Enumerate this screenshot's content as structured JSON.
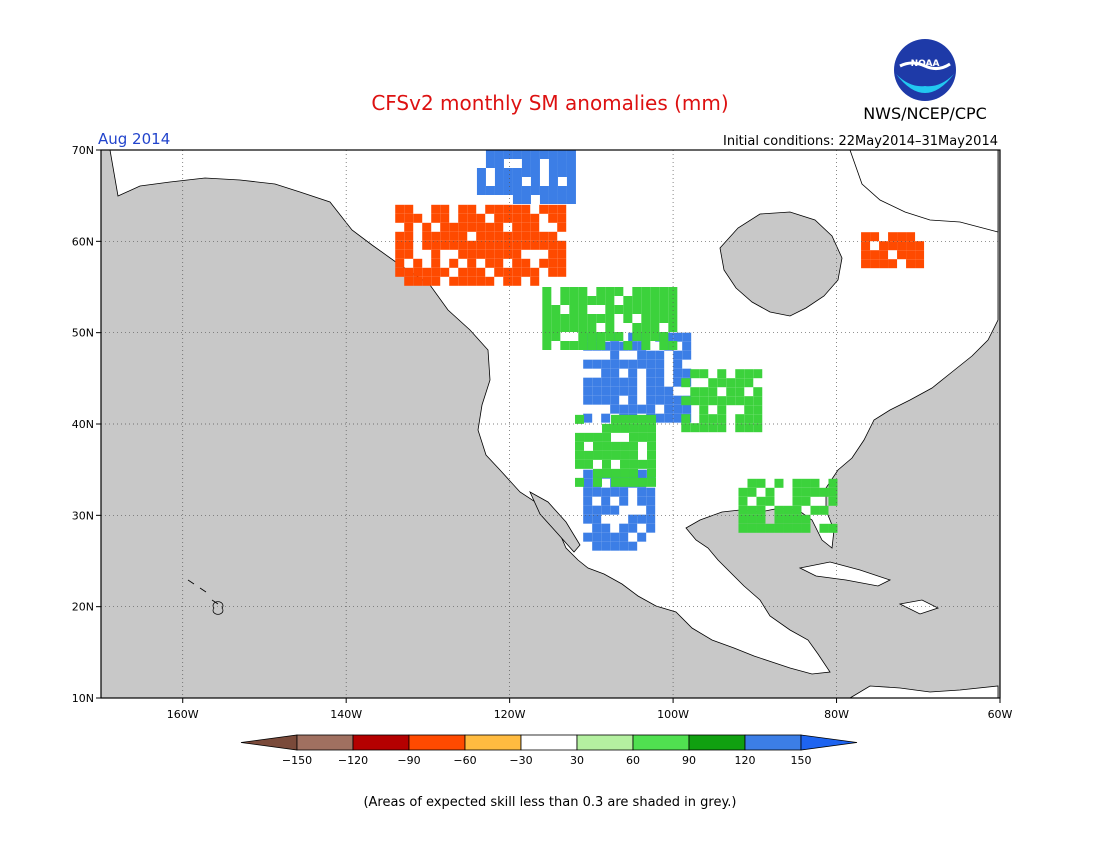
{
  "header": {
    "title": "CFSv2 monthly SM anomalies (mm)",
    "agency": "NWS/NCEP/CPC",
    "logo_text": "NOAA",
    "target_month": "Aug 2014",
    "initial_conditions": "Initial conditions: 22May2014–31May2014"
  },
  "map": {
    "projection": "lat-lon",
    "lon_range": [
      -170,
      -60
    ],
    "lat_range": [
      10,
      70
    ],
    "lat_ticks": [
      {
        "value": 70,
        "label": "70N"
      },
      {
        "value": 60,
        "label": "60N"
      },
      {
        "value": 50,
        "label": "50N"
      },
      {
        "value": 40,
        "label": "40N"
      },
      {
        "value": 30,
        "label": "30N"
      },
      {
        "value": 20,
        "label": "20N"
      },
      {
        "value": 10,
        "label": "10N"
      }
    ],
    "lon_ticks": [
      {
        "value": -160,
        "label": "160W"
      },
      {
        "value": -140,
        "label": "140W"
      },
      {
        "value": -120,
        "label": "120W"
      },
      {
        "value": -100,
        "label": "100W"
      },
      {
        "value": -80,
        "label": "80W"
      },
      {
        "value": -60,
        "label": "60W"
      }
    ],
    "grid": "dotted",
    "colors": {
      "ocean": "#c8c8c8",
      "land": "#ffffff",
      "low_skill": "#c8c8c8"
    },
    "regions": [
      {
        "name": "northern-plains-wet",
        "lon": [
          -111,
          -98
        ],
        "lat": [
          41,
          50
        ],
        "class": "120 to 150",
        "color": "#3c7ee6"
      },
      {
        "name": "upper-midwest-wet",
        "lon": [
          -99,
          -90
        ],
        "lat": [
          40,
          46
        ],
        "class": "60 to 120",
        "color": "#3cd23c"
      },
      {
        "name": "southwest-mexico-wet",
        "lon": [
          -111,
          -103
        ],
        "lat": [
          27,
          35
        ],
        "class": "90 to 150",
        "color": "#3c7ee6"
      },
      {
        "name": "southern-rockies-wet",
        "lon": [
          -112,
          -103
        ],
        "lat": [
          34,
          41
        ],
        "class": "60 to 90",
        "color": "#3cd23c"
      },
      {
        "name": "canadian-prairies-wet",
        "lon": [
          -116,
          -100
        ],
        "lat": [
          49,
          55
        ],
        "class": "60 to 120",
        "color": "#3cd23c"
      },
      {
        "name": "western-canada-dry",
        "lon": [
          -134,
          -114
        ],
        "lat": [
          56,
          64
        ],
        "class": "-90 to -30",
        "color": "#ff4a00"
      },
      {
        "name": "labrador-dry",
        "lon": [
          -77,
          -70
        ],
        "lat": [
          58,
          61
        ],
        "class": "-90 to -60",
        "color": "#ff4a00"
      },
      {
        "name": "southeast-wet",
        "lon": [
          -92,
          -80
        ],
        "lat": [
          29,
          34
        ],
        "class": "60 to 120",
        "color": "#3cd23c"
      },
      {
        "name": "northwest-territories-wet",
        "lon": [
          -124,
          -112
        ],
        "lat": [
          65,
          70
        ],
        "class": "120 to 150",
        "color": "#3c7ee6"
      }
    ]
  },
  "legend": {
    "colors": [
      "#7a4a3a",
      "#a07060",
      "#b40000",
      "#ff4a00",
      "#ffbb40",
      "#ffffff",
      "#b4f0a0",
      "#50e050",
      "#10a010",
      "#3c7ee6",
      "#1e64f0"
    ],
    "ticks": [
      "−150",
      "−120",
      "−90",
      "−60",
      "−30",
      "30",
      "60",
      "90",
      "120",
      "150"
    ]
  },
  "footnote": "(Areas of expected skill less than 0.3 are shaded in grey.)"
}
